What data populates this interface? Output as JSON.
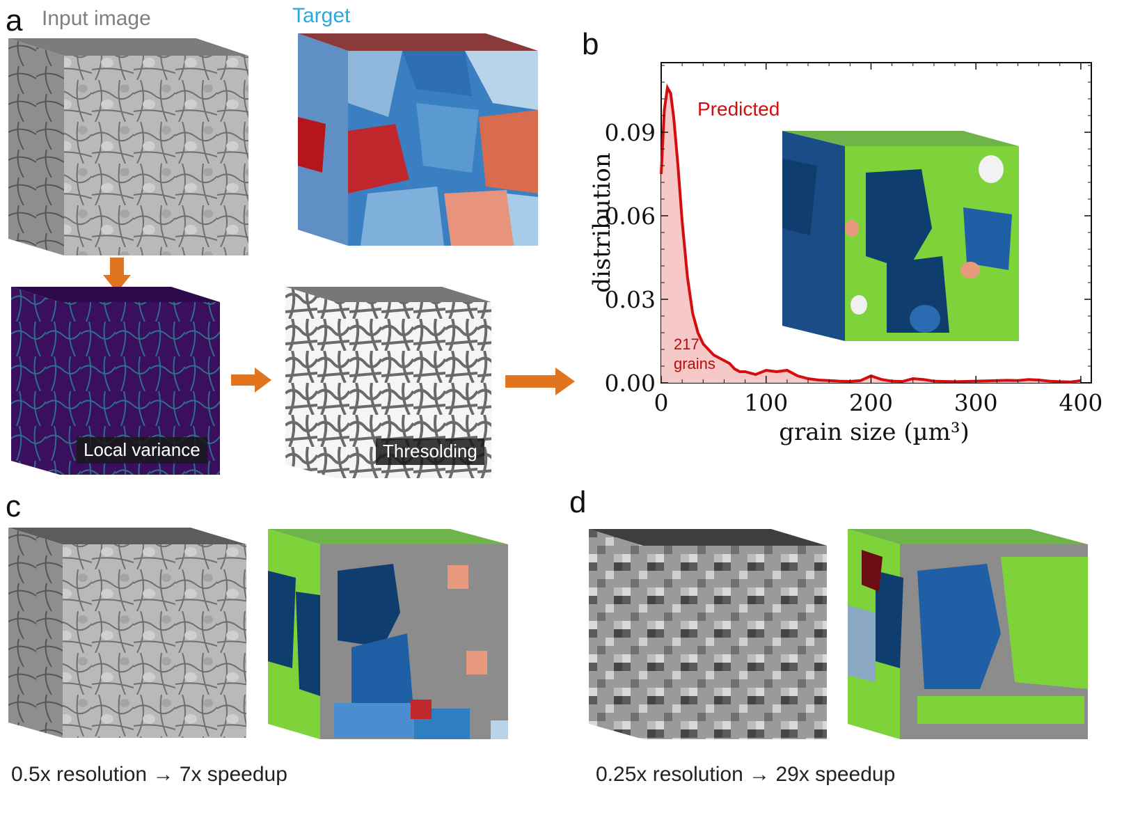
{
  "panel_a": {
    "letter": "a",
    "input_title": "Input image",
    "target_title": "Target",
    "variance_label": "Local variance",
    "threshold_label": "Thresolding"
  },
  "panel_b": {
    "letter": "b"
  },
  "panel_c": {
    "letter": "c",
    "caption": "0.5x resolution → 7x speedup"
  },
  "panel_d": {
    "letter": "d",
    "caption": "0.25x resolution → 29x speedup"
  },
  "colors": {
    "title_gray": "#7f7f7f",
    "title_blue": "#2aa8df",
    "arrow_orange": "#e0741f",
    "curve_red": "#d40e0e",
    "fill_pink": "#f6c8c8",
    "grain_green": "#7ed23a",
    "grain_blue": "#1f5fa6",
    "grain_navy": "#0e3d6e",
    "boundary_gray": "#8c8c8c",
    "variance_purple": "#3a0f5e"
  },
  "chart_data": {
    "type": "area",
    "title": "",
    "xlabel": "grain size (µm³)",
    "ylabel": "distribution",
    "xlim": [
      0,
      410
    ],
    "ylim": [
      0,
      0.115
    ],
    "xticks": [
      0,
      100,
      200,
      300,
      400
    ],
    "yticks": [
      0.0,
      0.03,
      0.06,
      0.09
    ],
    "xtick_labels": [
      "0",
      "100",
      "200",
      "300",
      "400"
    ],
    "ytick_labels": [
      "0.00",
      "0.03",
      "0.06",
      "0.09"
    ],
    "series": [
      {
        "name": "Predicted",
        "x": [
          0,
          3,
          6,
          9,
          12,
          16,
          20,
          25,
          30,
          35,
          40,
          45,
          50,
          55,
          60,
          65,
          70,
          75,
          80,
          90,
          100,
          110,
          120,
          130,
          140,
          150,
          160,
          170,
          180,
          190,
          200,
          210,
          220,
          230,
          240,
          250,
          260,
          270,
          280,
          290,
          300,
          310,
          320,
          330,
          340,
          350,
          360,
          370,
          380,
          390,
          400
        ],
        "y": [
          0.075,
          0.098,
          0.106,
          0.104,
          0.095,
          0.078,
          0.058,
          0.038,
          0.025,
          0.018,
          0.014,
          0.012,
          0.01,
          0.009,
          0.008,
          0.007,
          0.005,
          0.004,
          0.004,
          0.003,
          0.0045,
          0.004,
          0.0045,
          0.0025,
          0.0015,
          0.001,
          0.0008,
          0.0006,
          0.0005,
          0.0008,
          0.0025,
          0.0012,
          0.0006,
          0.0005,
          0.0015,
          0.0012,
          0.0006,
          0.0005,
          0.0004,
          0.0005,
          0.0006,
          0.0007,
          0.0008,
          0.0009,
          0.0008,
          0.0012,
          0.001,
          0.0006,
          0.0004,
          0.0003,
          0.0008
        ]
      }
    ],
    "annotations": [
      "Predicted",
      "217",
      "grains"
    ]
  }
}
